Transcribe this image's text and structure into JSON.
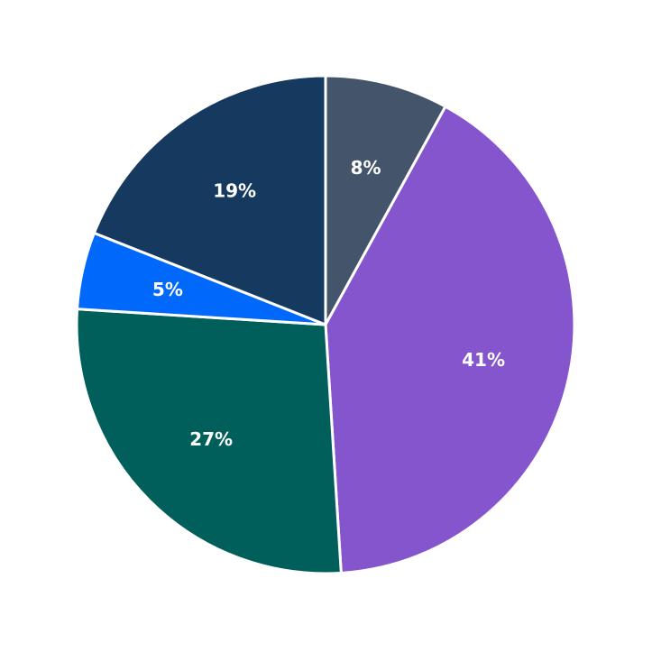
{
  "chart_data": {
    "type": "pie",
    "title": "",
    "categories": [
      "8%",
      "41%",
      "27%",
      "5%",
      "19%"
    ],
    "values": [
      8,
      41,
      27,
      5,
      19
    ],
    "slices": [
      {
        "label": "8%",
        "value": 8,
        "color": "#44546A"
      },
      {
        "label": "41%",
        "value": 41,
        "color": "#8455CD"
      },
      {
        "label": "27%",
        "value": 27,
        "color": "#005F5B"
      },
      {
        "label": "5%",
        "value": 5,
        "color": "#0068FA"
      },
      {
        "label": "19%",
        "value": 19,
        "color": "#16395F"
      }
    ],
    "start_angle": "12-oclock",
    "direction": "clockwise",
    "label_color": "#ffffff",
    "label_distance": 0.65,
    "wedge_edge_color": "#ffffff",
    "wedge_edge_width": 3,
    "background": "#ffffff",
    "legend": "none",
    "center": [
      361,
      360
    ],
    "radius": 276
  }
}
